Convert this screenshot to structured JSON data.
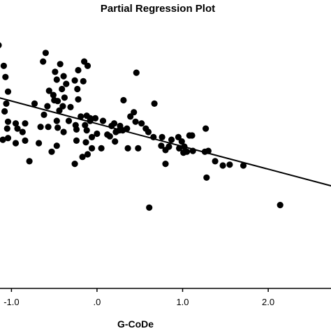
{
  "chart_data": {
    "type": "scatter",
    "title": "Partial Regression Plot",
    "xlabel": "G-CoDe",
    "ylabel": "",
    "xlim": [
      -1.15,
      2.75
    ],
    "ylim": [
      -1.85,
      1.1
    ],
    "grid": false,
    "legend": "none",
    "x_ticks": [
      {
        "value": -1.0,
        "label": "-1.0"
      },
      {
        "value": 0.0,
        "label": ".0"
      },
      {
        "value": 1.0,
        "label": "1.0"
      },
      {
        "value": 2.0,
        "label": "2.0"
      }
    ],
    "fit_line": {
      "x": [
        -1.15,
        2.75
      ],
      "y": [
        0.37,
        -0.66
      ]
    },
    "colors": {
      "points": "#000000",
      "line": "#000000",
      "axis": "#000000"
    },
    "series": [
      {
        "points": [
          [
            -1.15,
            0.98
          ],
          [
            -0.6,
            0.89
          ],
          [
            -0.63,
            0.79
          ],
          [
            -0.43,
            0.76
          ],
          [
            -0.15,
            0.79
          ],
          [
            -0.11,
            0.74
          ],
          [
            -1.09,
            0.74
          ],
          [
            -1.07,
            0.61
          ],
          [
            -0.49,
            0.67
          ],
          [
            -0.39,
            0.62
          ],
          [
            -0.47,
            0.58
          ],
          [
            -0.22,
            0.69
          ],
          [
            -0.26,
            0.57
          ],
          [
            -0.16,
            0.56
          ],
          [
            0.46,
            0.66
          ],
          [
            -0.23,
            0.47
          ],
          [
            -0.36,
            0.53
          ],
          [
            -0.41,
            0.47
          ],
          [
            -0.56,
            0.45
          ],
          [
            -0.51,
            0.4
          ],
          [
            -0.38,
            0.37
          ],
          [
            -0.5,
            0.34
          ],
          [
            -0.46,
            0.33
          ],
          [
            -0.22,
            0.35
          ],
          [
            -0.4,
            0.27
          ],
          [
            -0.31,
            0.26
          ],
          [
            -0.44,
            0.22
          ],
          [
            -0.58,
            0.27
          ],
          [
            -0.73,
            0.3
          ],
          [
            -0.62,
            0.17
          ],
          [
            -0.33,
            0.1
          ],
          [
            -1.04,
            0.44
          ],
          [
            -1.06,
            0.3
          ],
          [
            -1.08,
            0.21
          ],
          [
            -1.04,
            0.09
          ],
          [
            -1.05,
            0.01
          ],
          [
            -0.95,
            0.07
          ],
          [
            -0.93,
            0.01
          ],
          [
            -0.84,
            0.07
          ],
          [
            -0.87,
            -0.03
          ],
          [
            -0.66,
            0.03
          ],
          [
            -0.57,
            0.03
          ],
          [
            -0.47,
            0.1
          ],
          [
            -0.46,
            0.02
          ],
          [
            -0.39,
            -0.03
          ],
          [
            -1.04,
            -0.1
          ],
          [
            -1.1,
            -0.12
          ],
          [
            -0.84,
            -0.13
          ],
          [
            -0.95,
            -0.16
          ],
          [
            -0.68,
            -0.16
          ],
          [
            -0.47,
            -0.19
          ],
          [
            -0.53,
            -0.26
          ],
          [
            -0.19,
            0.15
          ],
          [
            -0.12,
            0.16
          ],
          [
            -0.08,
            0.13
          ],
          [
            -0.02,
            0.13
          ],
          [
            -0.08,
            0.1
          ],
          [
            -0.25,
            0.05
          ],
          [
            -0.14,
            0.05
          ],
          [
            -0.24,
            0.0
          ],
          [
            -0.12,
            -0.01
          ],
          [
            0.0,
            -0.05
          ],
          [
            -0.06,
            -0.09
          ],
          [
            -0.24,
            -0.13
          ],
          [
            -0.13,
            -0.15
          ],
          [
            -0.06,
            -0.22
          ],
          [
            0.05,
            -0.22
          ],
          [
            -0.17,
            -0.32
          ],
          [
            -0.11,
            -0.29
          ],
          [
            0.12,
            -0.06
          ],
          [
            0.15,
            -0.08
          ],
          [
            0.07,
            0.1
          ],
          [
            0.17,
            0.04
          ],
          [
            0.2,
            0.07
          ],
          [
            0.27,
            0.04
          ],
          [
            0.26,
            -0.01
          ],
          [
            0.22,
            -0.03
          ],
          [
            0.31,
            0.34
          ],
          [
            0.43,
            0.2
          ],
          [
            0.39,
            0.15
          ],
          [
            0.45,
            0.09
          ],
          [
            0.35,
            0.01
          ],
          [
            0.3,
            -0.01
          ],
          [
            0.21,
            -0.14
          ],
          [
            0.36,
            -0.22
          ],
          [
            0.48,
            -0.22
          ],
          [
            0.52,
            0.07
          ],
          [
            0.57,
            0.01
          ],
          [
            0.6,
            -0.03
          ],
          [
            0.67,
            0.3
          ],
          [
            0.66,
            -0.09
          ],
          [
            0.76,
            -0.09
          ],
          [
            0.75,
            -0.19
          ],
          [
            0.84,
            -0.2
          ],
          [
            0.8,
            -0.24
          ],
          [
            0.87,
            -0.12
          ],
          [
            0.95,
            -0.09
          ],
          [
            0.99,
            -0.14
          ],
          [
            0.96,
            -0.22
          ],
          [
            1.02,
            -0.2
          ],
          [
            1.01,
            -0.27
          ],
          [
            1.05,
            -0.26
          ],
          [
            1.08,
            -0.07
          ],
          [
            1.11,
            -0.07
          ],
          [
            1.12,
            -0.25
          ],
          [
            1.26,
            -0.26
          ],
          [
            1.27,
            0.01
          ],
          [
            1.3,
            -0.25
          ],
          [
            1.38,
            -0.37
          ],
          [
            1.47,
            -0.42
          ],
          [
            1.55,
            -0.41
          ],
          [
            1.71,
            -0.42
          ],
          [
            0.8,
            -0.4
          ],
          [
            0.61,
            -0.91
          ],
          [
            1.28,
            -0.56
          ],
          [
            2.14,
            -0.88
          ],
          [
            -0.79,
            -0.37
          ],
          [
            -0.26,
            -0.4
          ]
        ]
      }
    ]
  }
}
